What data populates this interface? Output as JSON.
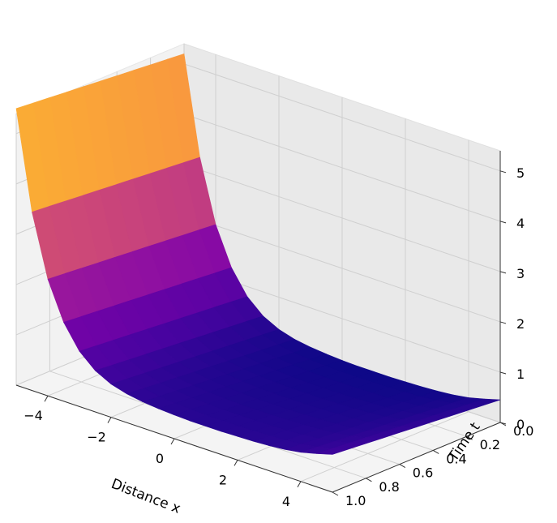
{
  "chart_data": {
    "type": "surface",
    "colormap": "plasma",
    "title": "",
    "xlabel": "Distance x",
    "ylabel": "Time t",
    "zlabel": "",
    "xlim": [
      -5,
      5
    ],
    "ylim": [
      0,
      1
    ],
    "zlim": [
      0,
      5.4
    ],
    "x_ticks": [
      "−4",
      "−2",
      "0",
      "2",
      "4"
    ],
    "y_ticks": [
      "0.0",
      "0.2",
      "0.4",
      "0.6",
      "0.8",
      "1.0"
    ],
    "z_ticks": [
      "0",
      "1",
      "2",
      "3",
      "4",
      "5"
    ],
    "grid": true,
    "x": [
      -5.0,
      -4.5,
      -4.0,
      -3.5,
      -3.0,
      -2.5,
      -2.0,
      -1.5,
      -1.0,
      -0.5,
      0.0,
      0.5,
      1.0,
      1.5,
      2.0,
      2.5,
      3.0,
      3.5,
      4.0,
      4.5,
      5.0
    ],
    "z_profile": [
      5.2,
      3.25,
      2.02,
      1.27,
      0.8,
      0.52,
      0.36,
      0.27,
      0.22,
      0.19,
      0.17,
      0.16,
      0.16,
      0.16,
      0.17,
      0.18,
      0.2,
      0.23,
      0.28,
      0.36,
      0.45
    ],
    "t": [
      0.0,
      0.1,
      0.2,
      0.3,
      0.4,
      0.5,
      0.6,
      0.7,
      0.8,
      0.9,
      1.0
    ],
    "t_profile": [
      0.0,
      0.03,
      0.06,
      0.09,
      0.12,
      0.15,
      0.18,
      0.21,
      0.24,
      0.27,
      0.3
    ]
  }
}
